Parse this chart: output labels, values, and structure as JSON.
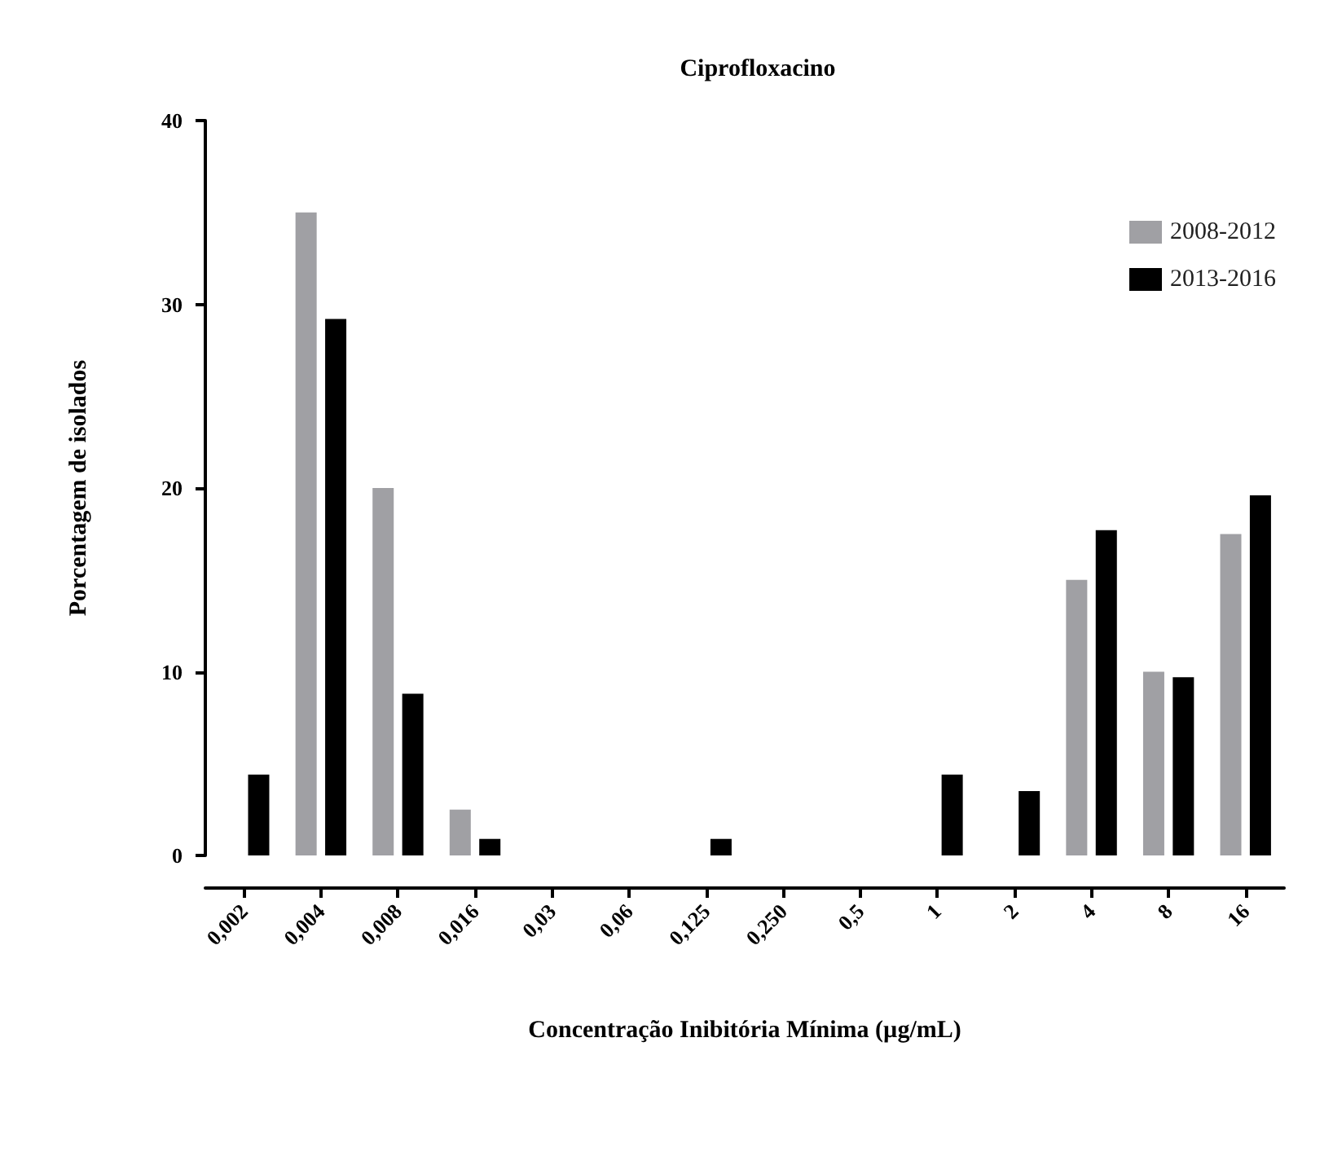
{
  "chart_data": {
    "type": "bar",
    "title": "Ciprofloxacino",
    "xlabel": "Concentração Inibitória Mínima (µg/mL)",
    "ylabel": "Porcentagem de isolados",
    "categories": [
      "0,002",
      "0,004",
      "0,008",
      "0,016",
      "0,03",
      "0,06",
      "0,125",
      "0,250",
      "0,5",
      "1",
      "2",
      "4",
      "8",
      "16"
    ],
    "series": [
      {
        "name": "2008-2012",
        "color": "#a0a0a4",
        "values": [
          0,
          35,
          20,
          2.5,
          0,
          0,
          0,
          0,
          0,
          0,
          0,
          15,
          10,
          17.5
        ]
      },
      {
        "name": "2013-2016",
        "color": "#000000",
        "values": [
          4.4,
          29.2,
          8.8,
          0.9,
          0,
          0,
          0.9,
          0,
          0,
          4.4,
          3.5,
          17.7,
          9.7,
          19.6
        ]
      }
    ],
    "ylim": [
      0,
      40
    ],
    "yticks": [
      0,
      10,
      20,
      30,
      40
    ],
    "grid": false,
    "legend": "top right"
  }
}
